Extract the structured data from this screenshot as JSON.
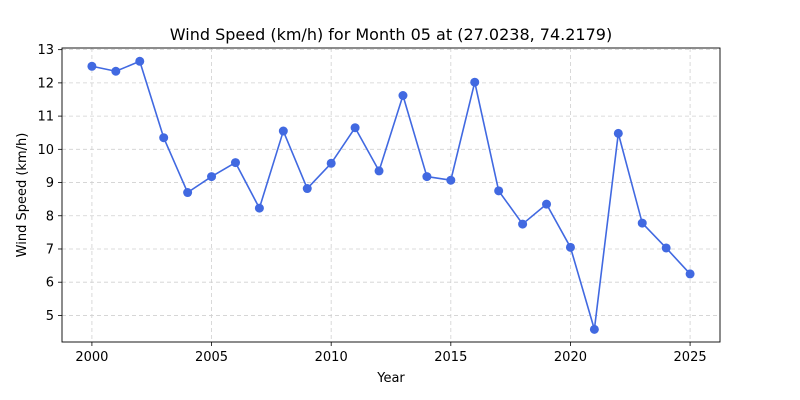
{
  "chart_data": {
    "type": "line",
    "title": "Wind Speed (km/h) for Month 05 at (27.0238, 74.2179)",
    "xlabel": "Year",
    "ylabel": "Wind Speed (km/h)",
    "xlim": [
      1998.75,
      2026.25
    ],
    "ylim": [
      4.2,
      13.05
    ],
    "xticks": [
      2000,
      2005,
      2010,
      2015,
      2020,
      2025
    ],
    "yticks": [
      5,
      6,
      7,
      8,
      9,
      10,
      11,
      12,
      13
    ],
    "grid": true,
    "color": "#4169e1",
    "x": [
      2000,
      2001,
      2002,
      2003,
      2004,
      2005,
      2006,
      2007,
      2008,
      2009,
      2010,
      2011,
      2012,
      2013,
      2014,
      2015,
      2016,
      2017,
      2018,
      2019,
      2020,
      2021,
      2022,
      2023,
      2024,
      2025
    ],
    "values": [
      12.5,
      12.35,
      12.65,
      10.35,
      8.7,
      9.18,
      9.6,
      8.23,
      10.55,
      8.82,
      9.58,
      10.65,
      9.35,
      11.62,
      9.18,
      9.07,
      12.02,
      8.75,
      7.75,
      8.35,
      7.05,
      4.58,
      10.48,
      7.78,
      7.03,
      6.25
    ]
  }
}
